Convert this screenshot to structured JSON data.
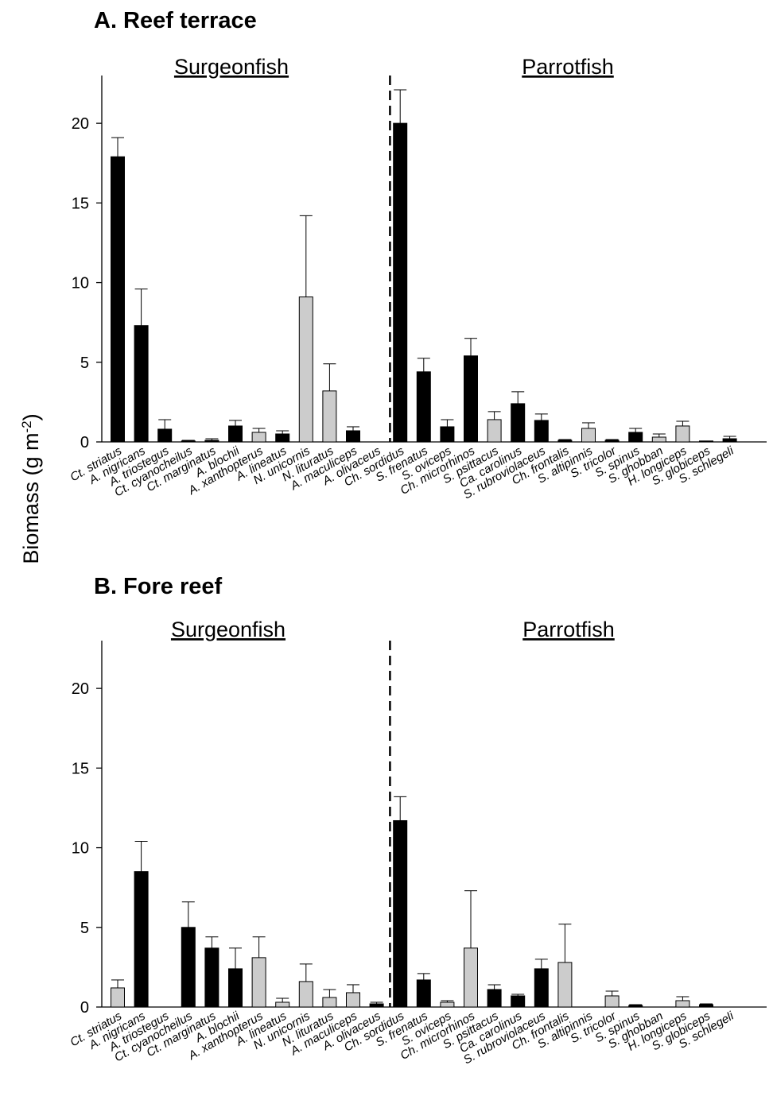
{
  "figure": {
    "ylabel": "Biomass (g m",
    "ylabel_sup": "-2",
    "ylabel_close": ")"
  },
  "colors": {
    "dark": "#000000",
    "light": "#cccccc"
  },
  "chart_data": [
    {
      "type": "bar",
      "title": "A. Reef terrace",
      "groups": [
        "Surgeonfish",
        "Parrotfish"
      ],
      "ylim": [
        0,
        23
      ],
      "yticks": [
        0,
        5,
        10,
        15,
        20
      ],
      "categories": [
        "Ct. striatus",
        "A. nigricans",
        "A. triostegus",
        "Ct. cyanocheilus",
        "Ct. marginatus",
        "A. blochii",
        "A. xanthopterus",
        "A. lineatus",
        "N. unicornis",
        "N. lituratus",
        "A. maculiceps",
        "A. olivaceus",
        "Ch. sordidus",
        "S. frenatus",
        "S. oviceps",
        "Ch. microrhinos",
        "S. psittacus",
        "Ca. carolinus",
        "S. rubroviolaceus",
        "Ch. frontalis",
        "S. altipinnis",
        "S. tricolor",
        "S. spinus",
        "S. ghobban",
        "H. longiceps",
        "S. globiceps",
        "S. schlegeli"
      ],
      "values": [
        17.9,
        7.3,
        0.8,
        0.05,
        0.1,
        1.0,
        0.6,
        0.5,
        9.1,
        3.2,
        0.7,
        0,
        20.0,
        4.4,
        0.95,
        5.4,
        1.4,
        2.4,
        1.35,
        0.1,
        0.85,
        0.1,
        0.6,
        0.3,
        1.0,
        0.02,
        0.2
      ],
      "errors": [
        1.2,
        2.3,
        0.6,
        0.05,
        0.1,
        0.35,
        0.25,
        0.2,
        5.1,
        1.7,
        0.25,
        0,
        2.1,
        0.85,
        0.45,
        1.1,
        0.5,
        0.75,
        0.4,
        0.05,
        0.35,
        0.05,
        0.25,
        0.2,
        0.3,
        0.02,
        0.15
      ],
      "fill": [
        "dark",
        "dark",
        "dark",
        "dark",
        "dark",
        "dark",
        "light",
        "dark",
        "light",
        "light",
        "dark",
        "dark",
        "dark",
        "dark",
        "dark",
        "dark",
        "light",
        "dark",
        "dark",
        "dark",
        "light",
        "dark",
        "dark",
        "light",
        "light",
        "dark",
        "dark"
      ]
    },
    {
      "type": "bar",
      "title": "B. Fore reef",
      "groups": [
        "Surgeonfish",
        "Parrotfish"
      ],
      "ylim": [
        0,
        23
      ],
      "yticks": [
        0,
        5,
        10,
        15,
        20
      ],
      "categories": [
        "Ct. striatus",
        "A. nigricans",
        "A. triostegus",
        "Ct. cyanocheilus",
        "Ct. marginatus",
        "A. blochii",
        "A. xanthopterus",
        "A. lineatus",
        "N. unicornis",
        "N. lituratus",
        "A. maculiceps",
        "A. olivaceus",
        "Ch. sordidus",
        "S. frenatus",
        "S. oviceps",
        "Ch. microrhinos",
        "S. psittacus",
        "Ca. carolinus",
        "S. rubroviolaceus",
        "Ch. frontalis",
        "S. altipinnis",
        "S. tricolor",
        "S. spinus",
        "S. ghobban",
        "H. longiceps",
        "S. globiceps",
        "S. schlegeli"
      ],
      "values": [
        1.2,
        8.5,
        0,
        5.0,
        3.7,
        2.4,
        3.1,
        0.3,
        1.6,
        0.6,
        0.9,
        0.2,
        11.7,
        1.7,
        0.3,
        3.7,
        1.1,
        0.7,
        2.4,
        2.8,
        0,
        0.7,
        0.1,
        0,
        0.4,
        0.15,
        0
      ],
      "errors": [
        0.5,
        1.9,
        0,
        1.6,
        0.7,
        1.3,
        1.3,
        0.25,
        1.1,
        0.5,
        0.5,
        0.1,
        1.5,
        0.4,
        0.1,
        3.6,
        0.3,
        0.1,
        0.6,
        2.4,
        0,
        0.3,
        0.05,
        0,
        0.25,
        0.05,
        0
      ],
      "fill": [
        "light",
        "dark",
        "dark",
        "dark",
        "dark",
        "dark",
        "light",
        "light",
        "light",
        "light",
        "light",
        "dark",
        "dark",
        "dark",
        "light",
        "light",
        "dark",
        "dark",
        "dark",
        "light",
        "dark",
        "light",
        "dark",
        "dark",
        "light",
        "dark",
        "dark"
      ]
    }
  ]
}
